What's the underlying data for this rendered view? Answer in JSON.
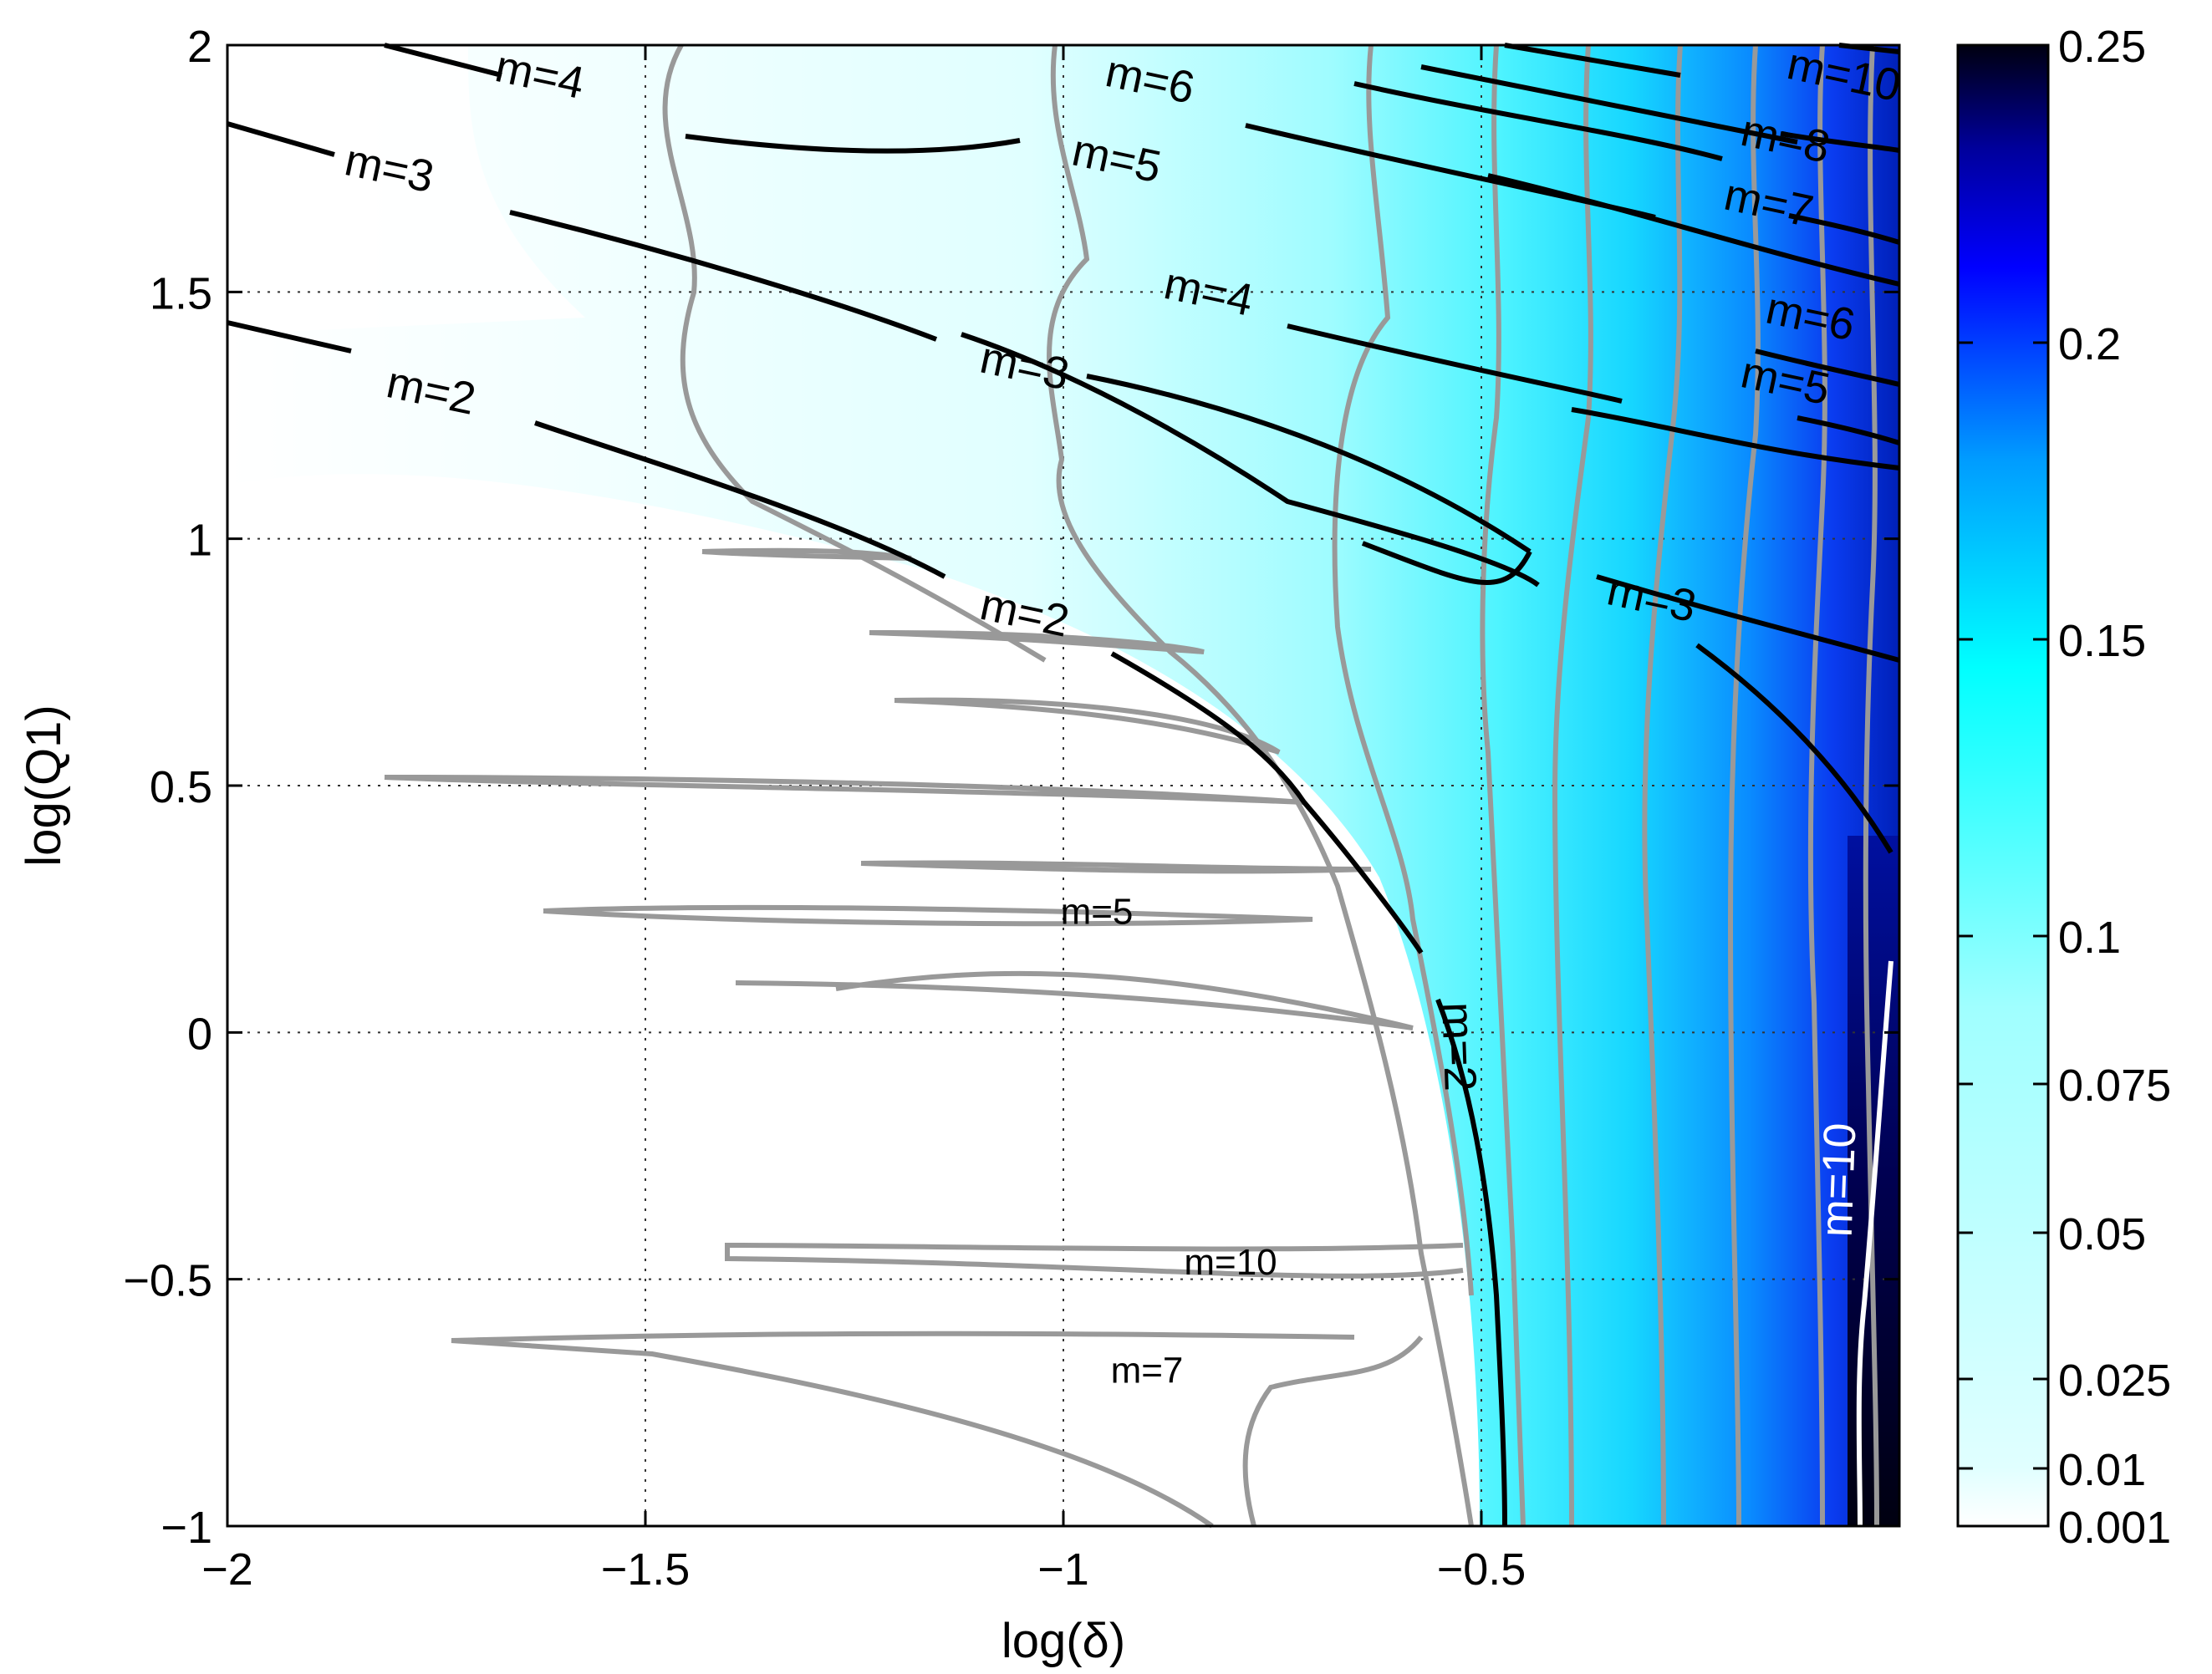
{
  "chart_data": {
    "type": "contour",
    "title": "",
    "xlabel": "log(δ)",
    "ylabel": "log(Q1)",
    "xlim": [
      -2,
      0
    ],
    "ylim": [
      -1,
      2
    ],
    "grid": true,
    "x_ticks": [
      -2,
      -1.5,
      -1,
      -0.5
    ],
    "x_tick_labels": [
      "−2",
      "−1.5",
      "−1",
      "−0.5"
    ],
    "y_ticks": [
      -1,
      -0.5,
      0,
      0.5,
      1,
      1.5,
      2
    ],
    "y_tick_labels": [
      "−1",
      "−0.5",
      "0",
      "0.5",
      "1",
      "1.5",
      "2"
    ],
    "colorbar": {
      "ticks": [
        0.001,
        0.01,
        0.025,
        0.05,
        0.075,
        0.1,
        0.15,
        0.2,
        0.25
      ],
      "tick_labels": [
        "0.001",
        "0.01",
        "0.025",
        "0.05",
        "0.075",
        "0.1",
        "0.15",
        "0.2",
        "0.25"
      ],
      "colors": [
        "#ffffff",
        "#e0ffff",
        "#00ffff",
        "#0000ff",
        "#000033"
      ]
    },
    "contour_labels": [
      {
        "text": "m=4",
        "x": -1.63,
        "y": 1.91,
        "style": "black"
      },
      {
        "text": "m=3",
        "x": -1.81,
        "y": 1.72,
        "style": "black"
      },
      {
        "text": "m=2",
        "x": -1.76,
        "y": 1.27,
        "style": "black"
      },
      {
        "text": "m=6",
        "x": -0.9,
        "y": 1.9,
        "style": "black"
      },
      {
        "text": "m=5",
        "x": -0.94,
        "y": 1.74,
        "style": "black"
      },
      {
        "text": "m=4",
        "x": -0.83,
        "y": 1.47,
        "style": "black"
      },
      {
        "text": "m=3",
        "x": -1.05,
        "y": 1.32,
        "style": "black"
      },
      {
        "text": "m=2",
        "x": -1.05,
        "y": 0.82,
        "style": "black"
      },
      {
        "text": "m=3",
        "x": -0.3,
        "y": 0.85,
        "style": "black"
      },
      {
        "text": "m=10",
        "x": -0.07,
        "y": 1.91,
        "style": "black"
      },
      {
        "text": "m=8",
        "x": -0.14,
        "y": 1.78,
        "style": "black"
      },
      {
        "text": "m=7",
        "x": -0.16,
        "y": 1.65,
        "style": "black"
      },
      {
        "text": "m=6",
        "x": -0.11,
        "y": 1.42,
        "style": "black"
      },
      {
        "text": "m=5",
        "x": -0.14,
        "y": 1.29,
        "style": "black"
      },
      {
        "text": "m=2",
        "x": -0.545,
        "y": -0.03,
        "style": "black-vertical"
      },
      {
        "text": "m=5",
        "x": -0.96,
        "y": 0.22,
        "style": "small"
      },
      {
        "text": "m=10",
        "x": -0.8,
        "y": -0.49,
        "style": "small"
      },
      {
        "text": "m=7",
        "x": -0.9,
        "y": -0.71,
        "style": "small"
      },
      {
        "text": "m=10",
        "x": -0.055,
        "y": -0.3,
        "style": "white-vertical"
      }
    ]
  }
}
